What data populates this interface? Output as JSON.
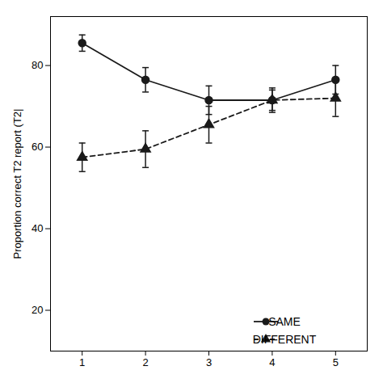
{
  "chart_data": {
    "type": "line",
    "x": [
      1,
      2,
      3,
      4,
      5
    ],
    "series": [
      {
        "name": "SAME",
        "color": "#1a1a1a",
        "marker": "circle",
        "line_style": "solid",
        "values": [
          85.5,
          76.5,
          71.5,
          71.5,
          76.5
        ],
        "yerr": [
          2.0,
          3.0,
          3.5,
          2.5,
          3.5
        ]
      },
      {
        "name": "DIFFERENT",
        "color": "#1a1a1a",
        "marker": "triangle",
        "line_style": "dashed",
        "values": [
          57.5,
          59.5,
          65.5,
          71.5,
          72.0
        ],
        "yerr": [
          3.5,
          4.5,
          4.5,
          3.0,
          4.5
        ]
      }
    ],
    "ylabel": "Proportion correct T2 report (T2|",
    "xlim": [
      0.5,
      5.5
    ],
    "xticks": [
      1,
      2,
      3,
      4,
      5
    ],
    "ylim": [
      10,
      92
    ],
    "yticks": [
      20,
      40,
      60,
      80
    ],
    "grid": false,
    "legend": "lower right"
  }
}
